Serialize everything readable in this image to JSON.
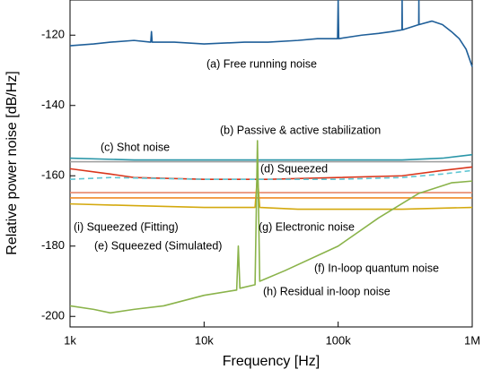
{
  "chart_data": {
    "type": "line",
    "xlabel": "Frequency [Hz]",
    "ylabel": "Relative power noise [dB/Hz]",
    "xscale": "log",
    "xlim": [
      1000,
      1000000
    ],
    "ylim": [
      -203,
      -110
    ],
    "xticks": [
      {
        "value": 1000,
        "label": "1k"
      },
      {
        "value": 10000,
        "label": "10k"
      },
      {
        "value": 100000,
        "label": "100k"
      },
      {
        "value": 1000000,
        "label": "1M"
      }
    ],
    "yticks": [
      -200,
      -180,
      -160,
      -140,
      -120
    ],
    "series": [
      {
        "name": "(a) Free running noise",
        "color": "#1f5f99",
        "x": [
          1000,
          1500,
          2000,
          3000,
          4000,
          4050,
          4100,
          6000,
          10000,
          20000,
          30000,
          50000,
          70000,
          99000,
          100000,
          101000,
          150000,
          200000,
          250000,
          299000,
          300000,
          301000,
          399000,
          400000,
          401000,
          500000,
          600000,
          700000,
          800000,
          900000,
          1000000
        ],
        "values": [
          -123,
          -122.5,
          -122,
          -121.5,
          -122,
          -119,
          -122,
          -122,
          -122.5,
          -122,
          -122,
          -121.5,
          -121,
          -121,
          -110,
          -121,
          -120,
          -119.5,
          -119,
          -118.5,
          -110,
          -118.5,
          -117,
          -110,
          -117,
          -116,
          -117,
          -119,
          -121,
          -124,
          -129
        ]
      },
      {
        "name": "(b) Passive & active stabilization",
        "color": "#2a96a8",
        "x": [
          1000,
          3000,
          10000,
          30000,
          100000,
          300000,
          600000,
          1000000
        ],
        "values": [
          -155,
          -155.5,
          -155.5,
          -155.5,
          -155.5,
          -155.5,
          -155,
          -154
        ]
      },
      {
        "name": "(c) Shot noise",
        "color": "#a0a0a0",
        "x": [
          1000,
          1000000
        ],
        "values": [
          -156,
          -156
        ]
      },
      {
        "name": "(d) Squeezed",
        "color": "#d9361c",
        "x": [
          1000,
          2000,
          3000,
          10000,
          30000,
          100000,
          300000,
          600000,
          1000000
        ],
        "values": [
          -158,
          -159.5,
          -160.5,
          -161,
          -161,
          -160.5,
          -160,
          -158.5,
          -157.5
        ]
      },
      {
        "name": "(i) Squeezed (Fitting)",
        "color": "#5fc6d3",
        "dash": "6,4",
        "x": [
          1000,
          2000,
          5000,
          10000,
          100000,
          300000,
          600000,
          1000000
        ],
        "values": [
          -161,
          -160.5,
          -160.8,
          -161,
          -161,
          -160.5,
          -159.5,
          -158.5
        ]
      },
      {
        "name": "(e) Squeezed (Simulated)",
        "color": "#e8876a",
        "x": [
          1000,
          1000000
        ],
        "values": [
          -164.8,
          -164.8
        ]
      },
      {
        "name": "(g) Electronic noise",
        "color": "#d4a90e",
        "x": [
          1000,
          3000,
          10000,
          24000,
          25000,
          26000,
          50000,
          100000,
          300000,
          1000000
        ],
        "values": [
          -168,
          -168.5,
          -169,
          -169,
          -160,
          -169,
          -169.5,
          -169.5,
          -169.5,
          -169
        ]
      },
      {
        "name": "(f) In-loop quantum noise",
        "color": "#f08a24",
        "x": [
          1000,
          1000000
        ],
        "values": [
          -166.3,
          -166.3
        ]
      },
      {
        "name": "(h) Residual in-loop noise",
        "color": "#8ab34a",
        "x": [
          1000,
          1500,
          2000,
          3000,
          5000,
          10000,
          17500,
          18000,
          18500,
          24000,
          25000,
          26000,
          40000,
          100000,
          200000,
          400000,
          700000,
          1000000
        ],
        "values": [
          -197,
          -198,
          -199,
          -198,
          -197,
          -194,
          -192.5,
          -180,
          -192,
          -191,
          -150,
          -190,
          -187,
          -180,
          -172,
          -165,
          -162,
          -161.5
        ]
      }
    ]
  }
}
